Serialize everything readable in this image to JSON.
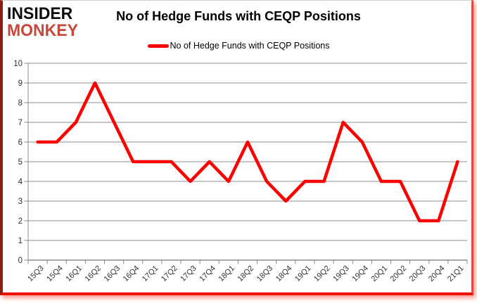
{
  "logo": {
    "line1": "INSIDER",
    "line2": "MONKEY",
    "line2_color": "#c8473b"
  },
  "header": {
    "title": "No of Hedge Funds with CEQP Positions"
  },
  "legend": {
    "label": "No of Hedge Funds with CEQP Positions",
    "swatch_color": "#ff0000"
  },
  "chart_data": {
    "type": "line",
    "title": "No of Hedge Funds with CEQP Positions",
    "xlabel": "",
    "ylabel": "",
    "ylim": [
      0,
      10
    ],
    "ytick_interval": 1,
    "yticks": [
      0,
      1,
      2,
      3,
      4,
      5,
      6,
      7,
      8,
      9,
      10
    ],
    "grid": "horizontal",
    "legend_position": "top",
    "categories": [
      "15Q3",
      "15Q4",
      "16Q1",
      "16Q2",
      "16Q3",
      "16Q4",
      "17Q1",
      "17Q2",
      "17Q3",
      "17Q4",
      "18Q1",
      "18Q2",
      "18Q3",
      "18Q4",
      "19Q1",
      "19Q2",
      "19Q3",
      "19Q4",
      "20Q1",
      "20Q2",
      "20Q3",
      "20Q4",
      "21Q1"
    ],
    "series": [
      {
        "name": "No of Hedge Funds with CEQP Positions",
        "values": [
          6,
          6,
          7,
          9,
          7,
          5,
          5,
          5,
          4,
          5,
          4,
          6,
          4,
          3,
          4,
          4,
          7,
          6,
          4,
          4,
          2,
          2,
          5
        ],
        "color": "#ff0000",
        "line_width": 4.5,
        "markers": false
      }
    ],
    "theme": {
      "gridline_color": "#8c8c8c",
      "axis_color": "#8c8c8c",
      "tick_label_color": "#303030",
      "background": "#ffffff"
    }
  }
}
